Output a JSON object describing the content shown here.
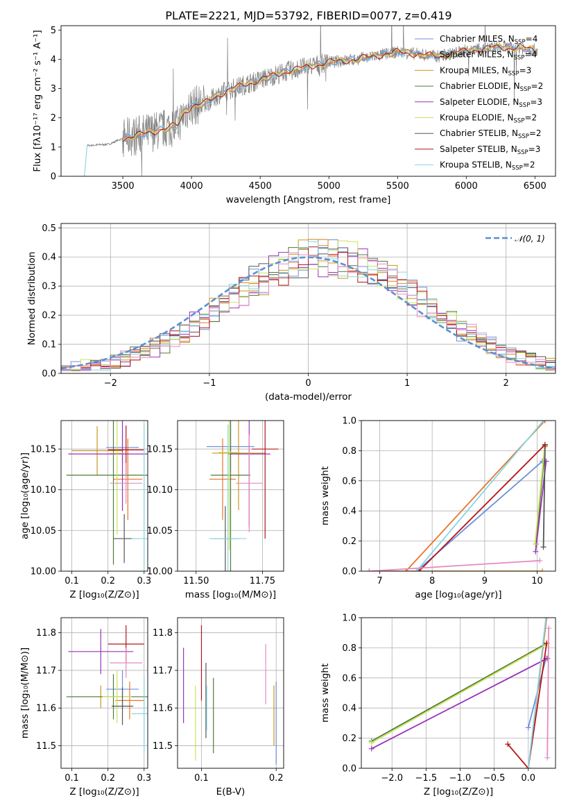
{
  "title": "PLATE=2221, MJD=53792, FIBERID=0077, z=0.419",
  "series_colors": {
    "Chabrier MILES": "#6c8fdb",
    "Salpeter MILES": "#e8742b",
    "Kroupa MILES": "#c8961e",
    "Chabrier ELODIE": "#4f7a3a",
    "Salpeter ELODIE": "#9932b8",
    "Kroupa ELODIE": "#cbe35a",
    "Chabrier STELIB": "#555555",
    "Salpeter STELIB": "#b3141b",
    "Kroupa STELIB": "#86d6e3",
    "Pink": "#e58ac2",
    "Data": "#808080",
    "Normal": "#5b8fd0"
  },
  "chart_data": [
    {
      "id": "spectrum",
      "type": "line",
      "title": "PLATE=2221, MJD=53792, FIBERID=0077, z=0.419",
      "xlabel": "wavelength [Angstrom, rest frame]",
      "ylabel": "Flux [fλ10⁻¹⁷ erg cm⁻² s⁻¹ A⁻¹]",
      "xlim": [
        3050,
        6650
      ],
      "ylim": [
        0,
        5.15
      ],
      "xticks": [
        "3500",
        "4000",
        "4500",
        "5000",
        "5500",
        "6000",
        "6500"
      ],
      "yticks": [
        "0",
        "1",
        "2",
        "3",
        "4",
        "5"
      ],
      "grid": false,
      "legend_position": "top-right",
      "legend": [
        {
          "text": "Chabrier MILES, N",
          "sub": "SSP",
          "tail": "=4"
        },
        {
          "text": "Salpeter MILES, N",
          "sub": "SSP",
          "tail": "=4"
        },
        {
          "text": "Kroupa MILES, N",
          "sub": "SSP",
          "tail": "=3"
        },
        {
          "text": "Chabrier ELODIE, N",
          "sub": "SSP",
          "tail": "=2"
        },
        {
          "text": "Salpeter ELODIE, N",
          "sub": "SSP",
          "tail": "=3"
        },
        {
          "text": "Kroupa ELODIE, N",
          "sub": "SSP",
          "tail": "=2"
        },
        {
          "text": "Chabrier STELIB, N",
          "sub": "SSP",
          "tail": "=2"
        },
        {
          "text": "Salpeter STELIB, N",
          "sub": "SSP",
          "tail": "=3"
        },
        {
          "text": "Kroupa STELIB, N",
          "sub": "SSP",
          "tail": "=2"
        }
      ],
      "continuum": {
        "x": [
          3150,
          3220,
          3240,
          3400,
          3500,
          3700,
          3900,
          3950,
          4000,
          4100,
          4200,
          4300,
          4500,
          4700,
          4900,
          5000,
          5200,
          5500,
          5800,
          6000,
          6200,
          6400,
          6520
        ],
        "y": [
          0,
          0,
          1.05,
          1.1,
          1.3,
          1.5,
          1.75,
          2.2,
          2.4,
          2.5,
          2.8,
          3.0,
          3.3,
          3.6,
          3.8,
          3.9,
          4.0,
          4.25,
          4.1,
          4.3,
          4.4,
          4.4,
          4.3
        ]
      }
    },
    {
      "id": "residuals",
      "type": "line",
      "xlabel": "(data-model)/error",
      "ylabel": "Normed distribution",
      "xlim": [
        -2.5,
        2.5
      ],
      "ylim": [
        0,
        0.515
      ],
      "xticks": [
        "−2",
        "−1",
        "0",
        "1",
        "2"
      ],
      "yticks": [
        "0.0",
        "0.1",
        "0.2",
        "0.3",
        "0.4",
        "0.5"
      ],
      "grid": true,
      "legend_position": "top-right",
      "legend": [
        "𝒩(0, 1)"
      ]
    },
    {
      "id": "age-vs-Z",
      "type": "scatter",
      "xlabel": "Z [log₁₀(Z/Z⊙)]",
      "ylabel": "age  [log₁₀(age/yr)]",
      "xlim": [
        0.07,
        0.31
      ],
      "ylim": [
        10.0,
        10.185
      ],
      "xticks": [
        "0.1",
        "0.2",
        "0.3"
      ],
      "yticks": [
        "10.00",
        "10.05",
        "10.10",
        "10.15"
      ],
      "grid": true,
      "points": [
        {
          "s": "Chabrier MILES",
          "x": 0.24,
          "y": 10.152,
          "xe": 0.045,
          "ye": 0.02
        },
        {
          "s": "Salpeter MILES",
          "x": 0.255,
          "y": 10.113,
          "xe": 0.04,
          "ye": 0.05
        },
        {
          "s": "Kroupa MILES",
          "x": 0.17,
          "y": 10.148,
          "xe": 0.07,
          "ye": 0.03
        },
        {
          "s": "Chabrier ELODIE",
          "x": 0.215,
          "y": 10.118,
          "xe": 0.13,
          "ye": 0.11
        },
        {
          "s": "Salpeter ELODIE",
          "x": 0.24,
          "y": 10.144,
          "xe": 0.15,
          "ye": 0.07
        },
        {
          "s": "Kroupa ELODIE",
          "x": 0.225,
          "y": 10.145,
          "xe": 0.02,
          "ye": 0.1
        },
        {
          "s": "Chabrier STELIB",
          "x": 0.245,
          "y": 10.04,
          "xe": 0.03,
          "ye": 0.03
        },
        {
          "s": "Salpeter STELIB",
          "x": 0.25,
          "y": 10.149,
          "xe": 0.05,
          "ye": 0.03
        },
        {
          "s": "Kroupa STELIB",
          "x": 0.3,
          "y": 10.04,
          "xe": 0.035,
          "ye": 0.14
        },
        {
          "s": "Pink",
          "x": 0.25,
          "y": 10.108,
          "xe": 0.045,
          "ye": 0.025
        }
      ]
    },
    {
      "id": "age-vs-mass",
      "type": "scatter",
      "xlabel": "mass [log₁₀(M/M⊙)]",
      "ylabel": "",
      "xlim": [
        11.43,
        11.83
      ],
      "ylim": [
        10.0,
        10.185
      ],
      "xticks": [
        "11.50",
        "11.75"
      ],
      "yticks": [
        "10.00",
        "10.05",
        "10.10",
        "10.15"
      ],
      "grid": true,
      "points": [
        {
          "s": "Chabrier MILES",
          "x": 11.63,
          "y": 10.153,
          "xe": 0.09,
          "ye": 0.03
        },
        {
          "s": "Salpeter MILES",
          "x": 11.6,
          "y": 10.113,
          "xe": 0.05,
          "ye": 0.05
        },
        {
          "s": "Kroupa MILES",
          "x": 11.66,
          "y": 10.145,
          "xe": 0.1,
          "ye": 0.07
        },
        {
          "s": "Chabrier ELODIE",
          "x": 11.63,
          "y": 10.118,
          "xe": 0.075,
          "ye": 0.12
        },
        {
          "s": "Salpeter ELODIE",
          "x": 11.7,
          "y": 10.144,
          "xe": 0.08,
          "ye": 0.09
        },
        {
          "s": "Kroupa ELODIE",
          "x": 11.625,
          "y": 10.146,
          "xe": 0.04,
          "ye": 0.12
        },
        {
          "s": "Chabrier STELIB",
          "x": 11.61,
          "y": 10.04,
          "xe": 0.05,
          "ye": 0.04
        },
        {
          "s": "Salpeter STELIB",
          "x": 11.76,
          "y": 10.15,
          "xe": 0.05,
          "ye": 0.11
        },
        {
          "s": "Kroupa STELIB",
          "x": 11.62,
          "y": 10.04,
          "xe": 0.07,
          "ye": 0.14
        },
        {
          "s": "Pink",
          "x": 11.7,
          "y": 10.108,
          "xe": 0.05,
          "ye": 0.06
        }
      ]
    },
    {
      "id": "mass-weight-vs-age",
      "type": "line",
      "xlabel": "age  [log₁₀(age/yr)]",
      "ylabel": "mass weight",
      "xlim": [
        6.65,
        10.35
      ],
      "ylim": [
        0,
        1.0
      ],
      "xticks": [
        "7",
        "8",
        "9",
        "10"
      ],
      "yticks": [
        "0.0",
        "0.2",
        "0.4",
        "0.6",
        "0.8",
        "1.0"
      ],
      "grid": true,
      "series": [
        {
          "s": "Chabrier MILES",
          "x": [
            7.7,
            10.1
          ],
          "y": [
            0,
            0.73
          ]
        },
        {
          "s": "Salpeter MILES",
          "x": [
            7.5,
            10.15
          ],
          "y": [
            0,
            1.0
          ]
        },
        {
          "s": "Kroupa MILES",
          "x": [
            6.8,
            10.1
          ],
          "y": [
            0,
            0.0
          ]
        },
        {
          "s": "Chabrier ELODIE",
          "x": [
            9.98,
            10.15
          ],
          "y": [
            0.18,
            0.83
          ]
        },
        {
          "s": "Salpeter ELODIE",
          "x": [
            9.97,
            10.17
          ],
          "y": [
            0.13,
            0.73
          ]
        },
        {
          "s": "Kroupa ELODIE",
          "x": [
            9.96,
            10.14
          ],
          "y": [
            0.18,
            0.82
          ]
        },
        {
          "s": "Chabrier STELIB",
          "x": [
            10.12,
            10.15
          ],
          "y": [
            0.16,
            0.84
          ]
        },
        {
          "s": "Salpeter STELIB",
          "x": [
            7.75,
            10.15
          ],
          "y": [
            0,
            0.84
          ]
        },
        {
          "s": "Kroupa STELIB",
          "x": [
            7.7,
            10.12
          ],
          "y": [
            0,
            1.0
          ]
        },
        {
          "s": "Pink",
          "x": [
            6.8,
            10.05
          ],
          "y": [
            0,
            0.07
          ]
        }
      ]
    },
    {
      "id": "mass-vs-Z",
      "type": "scatter",
      "xlabel": "Z [log₁₀(Z/Z⊙)]",
      "ylabel": "mass [log₁₀(M/M⊙)]",
      "xlim": [
        0.07,
        0.31
      ],
      "ylim": [
        11.44,
        11.84
      ],
      "xticks": [
        "0.1",
        "0.2",
        "0.3"
      ],
      "yticks": [
        "11.5",
        "11.6",
        "11.7",
        "11.8"
      ],
      "grid": true,
      "points": [
        {
          "s": "Chabrier MILES",
          "x": 0.24,
          "y": 11.65,
          "xe": 0.045,
          "ye": 0.05
        },
        {
          "s": "Salpeter MILES",
          "x": 0.26,
          "y": 11.62,
          "xe": 0.04,
          "ye": 0.05
        },
        {
          "s": "Kroupa MILES",
          "x": 0.18,
          "y": 11.63,
          "xe": 0.09,
          "ye": 0.03
        },
        {
          "s": "Chabrier ELODIE",
          "x": 0.215,
          "y": 11.63,
          "xe": 0.13,
          "ye": 0.06
        },
        {
          "s": "Salpeter ELODIE",
          "x": 0.18,
          "y": 11.75,
          "xe": 0.09,
          "ye": 0.06
        },
        {
          "s": "Kroupa ELODIE",
          "x": 0.225,
          "y": 11.63,
          "xe": 0.04,
          "ye": 0.07
        },
        {
          "s": "Chabrier STELIB",
          "x": 0.24,
          "y": 11.605,
          "xe": 0.03,
          "ye": 0.05
        },
        {
          "s": "Salpeter STELIB",
          "x": 0.25,
          "y": 11.77,
          "xe": 0.05,
          "ye": 0.05
        },
        {
          "s": "Kroupa STELIB",
          "x": 0.3,
          "y": 11.585,
          "xe": 0.035,
          "ye": 0.1
        },
        {
          "s": "Pink",
          "x": 0.25,
          "y": 11.72,
          "xe": 0.045,
          "ye": 0.04
        }
      ]
    },
    {
      "id": "mass-vs-EBV",
      "type": "scatter",
      "xlabel": "E(B-V)",
      "ylabel": "",
      "xlim": [
        0.068,
        0.21
      ],
      "ylim": [
        11.44,
        11.84
      ],
      "xticks": [
        "0.1",
        "0.2"
      ],
      "yticks": [
        "11.5",
        "11.6",
        "11.7",
        "11.8"
      ],
      "grid": true,
      "points": [
        {
          "s": "Salpeter ELODIE",
          "x": 0.076,
          "y": 11.66,
          "xe": 0,
          "ye": 0.1
        },
        {
          "s": "Kroupa ELODIE",
          "x": 0.092,
          "y": 11.56,
          "xe": 0,
          "ye": 0.1
        },
        {
          "s": "Salpeter STELIB",
          "x": 0.1,
          "y": 11.72,
          "xe": 0,
          "ye": 0.1
        },
        {
          "s": "Chabrier STELIB",
          "x": 0.106,
          "y": 11.62,
          "xe": 0,
          "ye": 0.1
        },
        {
          "s": "Kroupa STELIB",
          "x": 0.107,
          "y": 11.6,
          "xe": 0,
          "ye": 0.06
        },
        {
          "s": "Chabrier ELODIE",
          "x": 0.116,
          "y": 11.58,
          "xe": 0,
          "ye": 0.1
        },
        {
          "s": "Pink",
          "x": 0.186,
          "y": 11.69,
          "xe": 0,
          "ye": 0.08
        },
        {
          "s": "Kroupa MILES",
          "x": 0.197,
          "y": 11.58,
          "xe": 0,
          "ye": 0.08
        },
        {
          "s": "Chabrier MILES",
          "x": 0.2,
          "y": 11.56,
          "xe": 0,
          "ye": 0.11
        }
      ]
    },
    {
      "id": "mass-weight-vs-Z",
      "type": "line",
      "xlabel": "Z [log₁₀(Z/Z⊙)]",
      "ylabel": "mass weight",
      "xlim": [
        -2.45,
        0.4
      ],
      "ylim": [
        0,
        1.0
      ],
      "xticks": [
        "−2.0",
        "−1.5",
        "−1.0",
        "−0.5",
        "0.0"
      ],
      "yticks": [
        "0.0",
        "0.2",
        "0.4",
        "0.6",
        "0.8",
        "1.0"
      ],
      "grid": true,
      "series": [
        {
          "s": "Chabrier MILES",
          "x": [
            0.0,
            0.26
          ],
          "y": [
            0.27,
            0.73
          ]
        },
        {
          "s": "Salpeter MILES",
          "x": [
            0.0,
            0.27
          ],
          "y": [
            0,
            1.0
          ]
        },
        {
          "s": "Chabrier ELODIE",
          "x": [
            -2.3,
            0.27
          ],
          "y": [
            0.18,
            0.83
          ]
        },
        {
          "s": "Salpeter ELODIE",
          "x": [
            -2.3,
            0.28
          ],
          "y": [
            0.13,
            0.73
          ]
        },
        {
          "s": "Kroupa ELODIE",
          "x": [
            -2.3,
            0.26
          ],
          "y": [
            0.17,
            0.82
          ]
        },
        {
          "s": "Salpeter STELIB",
          "x": [
            -0.3,
            0.0,
            0.27
          ],
          "y": [
            0.16,
            0.0,
            0.83
          ]
        },
        {
          "s": "Kroupa STELIB",
          "x": [
            0.0,
            0.26
          ],
          "y": [
            0.0,
            1.0
          ]
        },
        {
          "s": "Pink",
          "x": [
            0.28,
            0.3
          ],
          "y": [
            0.07,
            0.93
          ]
        }
      ]
    }
  ]
}
